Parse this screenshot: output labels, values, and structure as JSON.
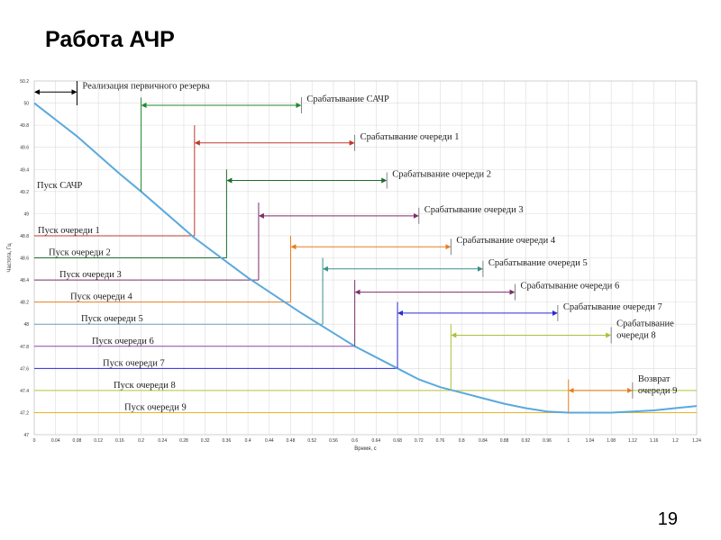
{
  "slide": {
    "title": "Работа АЧР",
    "page_number": "19"
  },
  "chart_data": {
    "type": "line",
    "xlabel": "Время, с",
    "ylabel": "Частота, Гц",
    "xlim": [
      0,
      1.24
    ],
    "ylim": [
      47,
      50.2
    ],
    "x_ticks": [
      "0",
      "0.04",
      "0.08",
      "0.12",
      "0.16",
      "0.2",
      "0.24",
      "0.28",
      "0.32",
      "0.36",
      "0.4",
      "0.44",
      "0.48",
      "0.52",
      "0.56",
      "0.6",
      "0.64",
      "0.68",
      "0.72",
      "0.76",
      "0.8",
      "0.84",
      "0.88",
      "0.92",
      "0.96",
      "1",
      "1.04",
      "1.08",
      "1.12",
      "1.16",
      "1.2",
      "1.24"
    ],
    "y_ticks": [
      "47",
      "47.2",
      "47.4",
      "47.6",
      "47.8",
      "48",
      "48.2",
      "48.4",
      "48.6",
      "48.8",
      "49",
      "49.2",
      "49.4",
      "49.6",
      "49.8",
      "50",
      "50.2"
    ],
    "grid": true,
    "series": [
      {
        "color": "#5aa9dd",
        "x": [
          0,
          0.04,
          0.08,
          0.12,
          0.16,
          0.2,
          0.3,
          0.4,
          0.5,
          0.6,
          0.68,
          0.72,
          0.76,
          0.8,
          0.84,
          0.88,
          0.92,
          0.96,
          1.0,
          1.04,
          1.08,
          1.12,
          1.16,
          1.2,
          1.24
        ],
        "y": [
          50.0,
          49.85,
          49.7,
          49.53,
          49.36,
          49.2,
          48.78,
          48.42,
          48.1,
          47.8,
          47.6,
          47.5,
          47.43,
          47.38,
          47.33,
          47.28,
          47.24,
          47.21,
          47.2,
          47.2,
          47.2,
          47.21,
          47.22,
          47.24,
          47.26
        ]
      }
    ],
    "start_lines": [
      {
        "label": "Пуск очереди 1",
        "y": 48.8,
        "x_end": 0.3,
        "color": "#c0392b"
      },
      {
        "label": "Пуск очереди 2",
        "y": 48.6,
        "x_end": 0.36,
        "color": "#1e6b2e"
      },
      {
        "label": "Пуск очереди 3",
        "y": 48.4,
        "x_end": 0.42,
        "color": "#7b2f6b"
      },
      {
        "label": "Пуск очереди 4",
        "y": 48.2,
        "x_end": 0.48,
        "color": "#e67e22"
      },
      {
        "label": "Пуск очереди 5",
        "y": 48.0,
        "x_end": 0.54,
        "color": "#6a9fb5"
      },
      {
        "label": "Пуск очереди 6",
        "y": 47.8,
        "x_end": 0.6,
        "color": "#8e44ad"
      },
      {
        "label": "Пуск очереди 7",
        "y": 47.6,
        "x_end": 0.68,
        "color": "#2a2ad4"
      },
      {
        "label": "Пуск очереди 8",
        "y": 47.4,
        "x_end": 1.24,
        "color": "#b8c23a"
      },
      {
        "label": "Пуск очереди 9",
        "y": 47.2,
        "x_end": 1.24,
        "color": "#e6b422"
      }
    ],
    "achr_start": {
      "label": "Пуск САЧР",
      "y": 49.2,
      "x_end": 0.2
    },
    "annotations": [
      {
        "label": "Реализация первичного резерва",
        "x1": 0.0,
        "x2": 0.08,
        "y": 50.1,
        "color": "#000000",
        "vline_x": 0.08,
        "vline_y0": 49.98,
        "vline_y1": 50.2
      },
      {
        "label": "Срабатывание САЧР",
        "x1": 0.2,
        "x2": 0.5,
        "y": 49.98,
        "color": "#1e8a2e",
        "vline_x": 0.2,
        "vline_y0": 49.2,
        "vline_y1": 50.05,
        "tick_x": 0.5
      },
      {
        "label": "Срабатывание очереди 1",
        "x1": 0.3,
        "x2": 0.6,
        "y": 49.64,
        "color": "#c0392b",
        "vline_x": 0.3,
        "vline_y0": 48.8,
        "vline_y1": 49.8,
        "tick_x": 0.6
      },
      {
        "label": "Срабатывание очереди 2",
        "x1": 0.36,
        "x2": 0.66,
        "y": 49.3,
        "color": "#1e6b2e",
        "vline_x": 0.36,
        "vline_y0": 48.6,
        "vline_y1": 49.4,
        "tick_x": 0.66
      },
      {
        "label": "Срабатывание очереди 3",
        "x1": 0.42,
        "x2": 0.72,
        "y": 48.98,
        "color": "#7b2f6b",
        "vline_x": 0.42,
        "vline_y0": 48.4,
        "vline_y1": 49.1,
        "tick_x": 0.72
      },
      {
        "label": "Срабатывание очереди 4",
        "x1": 0.48,
        "x2": 0.78,
        "y": 48.7,
        "color": "#e67e22",
        "vline_x": 0.48,
        "vline_y0": 48.2,
        "vline_y1": 48.8,
        "tick_x": 0.78
      },
      {
        "label": "Срабатывание очереди 5",
        "x1": 0.54,
        "x2": 0.84,
        "y": 48.5,
        "color": "#3a8f8a",
        "vline_x": 0.54,
        "vline_y0": 48.0,
        "vline_y1": 48.6,
        "tick_x": 0.84
      },
      {
        "label": "Срабатывание очереди 6",
        "x1": 0.6,
        "x2": 0.9,
        "y": 48.29,
        "color": "#7b2f6b",
        "vline_x": 0.6,
        "vline_y0": 47.8,
        "vline_y1": 48.4,
        "tick_x": 0.9
      },
      {
        "label": "Срабатывание очереди 7",
        "x1": 0.68,
        "x2": 0.98,
        "y": 48.1,
        "color": "#2a2ad4",
        "vline_x": 0.68,
        "vline_y0": 47.6,
        "vline_y1": 48.2,
        "tick_x": 0.98
      },
      {
        "label": [
          "Срабатывание",
          "очереди 8"
        ],
        "x1": 0.78,
        "x2": 1.08,
        "y": 47.9,
        "color": "#a8c23a",
        "vline_x": 0.78,
        "vline_y0": 47.4,
        "vline_y1": 48.0,
        "tick_x": 1.08
      },
      {
        "label": [
          "Возврат",
          "очереди 9"
        ],
        "x1": 1.0,
        "x2": 1.12,
        "y": 47.4,
        "color": "#e67e22",
        "vline_x": 1.0,
        "vline_y0": 47.2,
        "vline_y1": 47.5,
        "tick_x": 1.12
      }
    ]
  }
}
